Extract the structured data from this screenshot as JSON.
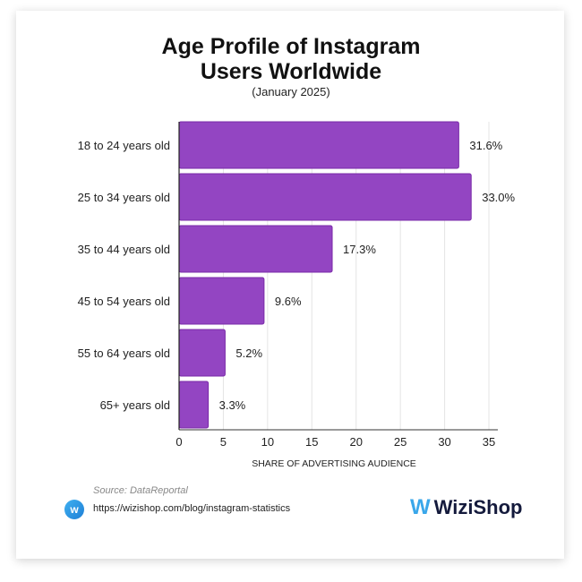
{
  "chart_data": {
    "type": "bar",
    "orientation": "horizontal",
    "title": "Age Profile of Instagram Users Worldwide",
    "subtitle": "(January 2025)",
    "categories": [
      "18 to 24 years old",
      "25 to 34 years old",
      "35 to 44 years old",
      "45 to 54 years old",
      "55 to 64 years old",
      "65+ years old"
    ],
    "values": [
      31.6,
      33.0,
      17.3,
      9.6,
      5.2,
      3.3
    ],
    "data_labels": [
      "31.6%",
      "33.0%",
      "17.3%",
      "9.6%",
      "5.2%",
      "3.3%"
    ],
    "xlabel": "SHARE OF ADVERTISING AUDIENCE",
    "ylabel": "",
    "xlim": [
      0,
      35
    ],
    "xticks": [
      "0",
      "5",
      "10",
      "15",
      "20",
      "25",
      "30",
      "35"
    ],
    "grid": "vertical",
    "bar_color": "#9345c2"
  },
  "footer": {
    "source": "Source: DataReportal",
    "url": "https://wizishop.com/blog/instagram-statistics",
    "brand": "WiziShop",
    "brand_color": "#3aa7ea"
  }
}
